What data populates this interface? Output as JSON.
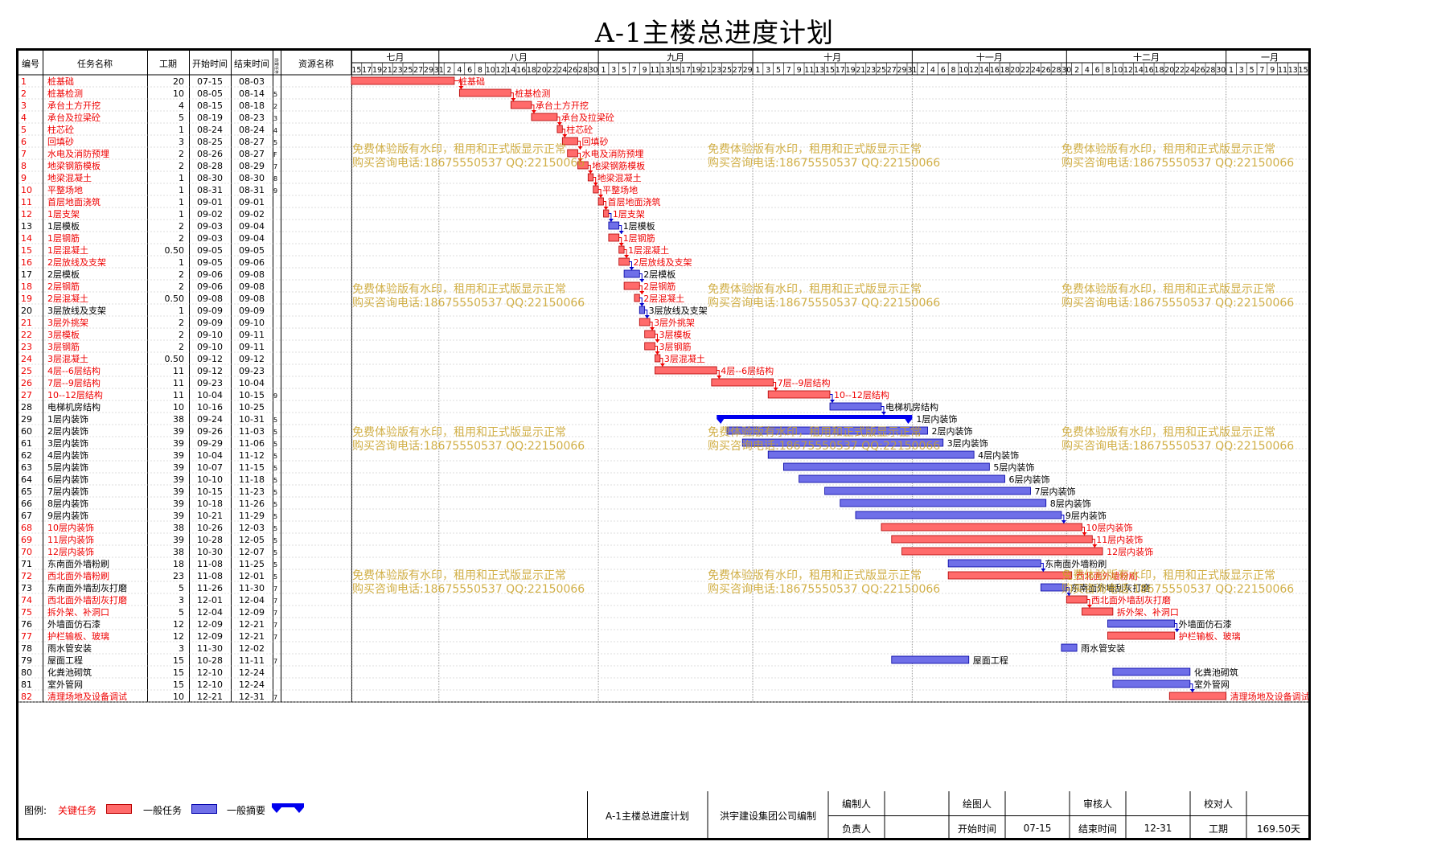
{
  "title": "A-1主楼总进度计划",
  "headers": {
    "id": "编号",
    "name": "任务名称",
    "dur": "工期",
    "start": "开始时间",
    "end": "结束时间",
    "pre": "前置任务",
    "res": "资源名称"
  },
  "months": [
    {
      "label": "七月",
      "start": "07-15",
      "end": "07-31"
    },
    {
      "label": "八月",
      "start": "08-01",
      "end": "08-31"
    },
    {
      "label": "九月",
      "start": "09-01",
      "end": "09-30"
    },
    {
      "label": "十月",
      "start": "10-01",
      "end": "10-31"
    },
    {
      "label": "十一月",
      "start": "11-01",
      "end": "11-30"
    },
    {
      "label": "十二月",
      "start": "12-01",
      "end": "12-31"
    },
    {
      "label": "一月",
      "start": "01-01",
      "end": "01-17"
    }
  ],
  "day_ticks": [
    {
      "month": 7,
      "days": [
        15,
        17,
        19,
        21,
        23,
        25,
        27,
        29,
        31
      ]
    },
    {
      "month": 8,
      "days": [
        2,
        4,
        6,
        8,
        10,
        12,
        14,
        16,
        18,
        20,
        22,
        24,
        26,
        28,
        30
      ]
    },
    {
      "month": 9,
      "days": [
        1,
        3,
        5,
        7,
        9,
        11,
        13,
        15,
        17,
        19,
        21,
        23,
        25,
        27,
        29
      ]
    },
    {
      "month": 10,
      "days": [
        1,
        3,
        5,
        7,
        9,
        11,
        13,
        15,
        17,
        19,
        21,
        23,
        25,
        27,
        29,
        31
      ]
    },
    {
      "month": 11,
      "days": [
        2,
        4,
        6,
        8,
        10,
        12,
        14,
        16,
        18,
        20,
        22,
        24,
        26,
        28,
        30
      ]
    },
    {
      "month": 12,
      "days": [
        2,
        4,
        6,
        8,
        10,
        12,
        14,
        16,
        18,
        20,
        22,
        24,
        26,
        28,
        30
      ]
    },
    {
      "month": 1,
      "days": [
        1,
        3,
        5,
        7,
        9,
        11,
        13,
        15,
        17
      ]
    }
  ],
  "chart_data": {
    "type": "gantt",
    "title": "A-1主楼总进度计划",
    "x_axis": "date (07-15 to 01-17)",
    "tasks": [
      {
        "id": "1",
        "name": "桩基础",
        "duration": "20",
        "start": "07-15",
        "end": "08-03",
        "pre": "",
        "kind": "critical"
      },
      {
        "id": "2",
        "name": "桩基检测",
        "duration": "10",
        "start": "08-05",
        "end": "08-14",
        "pre": "5",
        "kind": "critical"
      },
      {
        "id": "3",
        "name": "承台土方开挖",
        "duration": "4",
        "start": "08-15",
        "end": "08-18",
        "pre": "2",
        "kind": "critical"
      },
      {
        "id": "4",
        "name": "承台及拉梁砼",
        "duration": "5",
        "start": "08-19",
        "end": "08-23",
        "pre": "3",
        "kind": "critical"
      },
      {
        "id": "5",
        "name": "柱芯砼",
        "duration": "1",
        "start": "08-24",
        "end": "08-24",
        "pre": "4",
        "kind": "critical"
      },
      {
        "id": "6",
        "name": "回填砂",
        "duration": "3",
        "start": "08-25",
        "end": "08-27",
        "pre": "5",
        "kind": "critical"
      },
      {
        "id": "7",
        "name": "水电及消防预埋",
        "duration": "2",
        "start": "08-26",
        "end": "08-27",
        "pre": "F",
        "kind": "critical"
      },
      {
        "id": "8",
        "name": "地梁钢筋模板",
        "duration": "2",
        "start": "08-28",
        "end": "08-29",
        "pre": "7",
        "kind": "critical"
      },
      {
        "id": "9",
        "name": "地梁混凝土",
        "duration": "1",
        "start": "08-30",
        "end": "08-30",
        "pre": "8",
        "kind": "critical"
      },
      {
        "id": "10",
        "name": "平整场地",
        "duration": "1",
        "start": "08-31",
        "end": "08-31",
        "pre": "9",
        "kind": "critical"
      },
      {
        "id": "11",
        "name": "首层地面浇筑",
        "duration": "1",
        "start": "09-01",
        "end": "09-01",
        "pre": "",
        "kind": "critical"
      },
      {
        "id": "12",
        "name": "1层支架",
        "duration": "1",
        "start": "09-02",
        "end": "09-02",
        "pre": "",
        "kind": "critical"
      },
      {
        "id": "13",
        "name": "1层模板",
        "duration": "2",
        "start": "09-03",
        "end": "09-04",
        "pre": "",
        "kind": "normal"
      },
      {
        "id": "14",
        "name": "1层钢筋",
        "duration": "2",
        "start": "09-03",
        "end": "09-04",
        "pre": "",
        "kind": "critical"
      },
      {
        "id": "15",
        "name": "1层混凝土",
        "duration": "0.50",
        "start": "09-05",
        "end": "09-05",
        "pre": "",
        "kind": "critical"
      },
      {
        "id": "16",
        "name": "2层放线及支架",
        "duration": "1",
        "start": "09-05",
        "end": "09-06",
        "pre": "",
        "kind": "critical"
      },
      {
        "id": "17",
        "name": "2层模板",
        "duration": "2",
        "start": "09-06",
        "end": "09-08",
        "pre": "",
        "kind": "normal"
      },
      {
        "id": "18",
        "name": "2层钢筋",
        "duration": "2",
        "start": "09-06",
        "end": "09-08",
        "pre": "",
        "kind": "critical"
      },
      {
        "id": "19",
        "name": "2层混凝土",
        "duration": "0.50",
        "start": "09-08",
        "end": "09-08",
        "pre": "",
        "kind": "critical"
      },
      {
        "id": "20",
        "name": "3层放线及支架",
        "duration": "1",
        "start": "09-09",
        "end": "09-09",
        "pre": "",
        "kind": "normal"
      },
      {
        "id": "21",
        "name": "3层外挑架",
        "duration": "2",
        "start": "09-09",
        "end": "09-10",
        "pre": "",
        "kind": "critical"
      },
      {
        "id": "22",
        "name": "3层模板",
        "duration": "2",
        "start": "09-10",
        "end": "09-11",
        "pre": "",
        "kind": "critical"
      },
      {
        "id": "23",
        "name": "3层钢筋",
        "duration": "2",
        "start": "09-10",
        "end": "09-11",
        "pre": "",
        "kind": "critical"
      },
      {
        "id": "24",
        "name": "3层混凝土",
        "duration": "0.50",
        "start": "09-12",
        "end": "09-12",
        "pre": "",
        "kind": "critical"
      },
      {
        "id": "25",
        "name": "4层--6层结构",
        "duration": "11",
        "start": "09-12",
        "end": "09-23",
        "pre": "",
        "kind": "critical"
      },
      {
        "id": "26",
        "name": "7层--9层结构",
        "duration": "11",
        "start": "09-23",
        "end": "10-04",
        "pre": "",
        "kind": "critical"
      },
      {
        "id": "27",
        "name": "10--12层结构",
        "duration": "11",
        "start": "10-04",
        "end": "10-15",
        "pre": "9",
        "kind": "critical"
      },
      {
        "id": "28",
        "name": "电梯机房结构",
        "duration": "10",
        "start": "10-16",
        "end": "10-25",
        "pre": "",
        "kind": "normal"
      },
      {
        "id": "29",
        "name": "1层内装饰",
        "duration": "38",
        "start": "09-24",
        "end": "10-31",
        "pre": "5",
        "kind": "summary"
      },
      {
        "id": "60",
        "name": "2层内装饰",
        "duration": "39",
        "start": "09-26",
        "end": "11-03",
        "pre": "5",
        "kind": "normal"
      },
      {
        "id": "61",
        "name": "3层内装饰",
        "duration": "39",
        "start": "09-29",
        "end": "11-06",
        "pre": "5",
        "kind": "normal"
      },
      {
        "id": "62",
        "name": "4层内装饰",
        "duration": "39",
        "start": "10-04",
        "end": "11-12",
        "pre": "5",
        "kind": "normal"
      },
      {
        "id": "63",
        "name": "5层内装饰",
        "duration": "39",
        "start": "10-07",
        "end": "11-15",
        "pre": "5",
        "kind": "normal"
      },
      {
        "id": "64",
        "name": "6层内装饰",
        "duration": "39",
        "start": "10-10",
        "end": "11-18",
        "pre": "5",
        "kind": "normal"
      },
      {
        "id": "65",
        "name": "7层内装饰",
        "duration": "39",
        "start": "10-15",
        "end": "11-23",
        "pre": "5",
        "kind": "normal"
      },
      {
        "id": "66",
        "name": "8层内装饰",
        "duration": "39",
        "start": "10-18",
        "end": "11-26",
        "pre": "5",
        "kind": "normal"
      },
      {
        "id": "67",
        "name": "9层内装饰",
        "duration": "39",
        "start": "10-21",
        "end": "11-29",
        "pre": "5",
        "kind": "normal"
      },
      {
        "id": "68",
        "name": "10层内装饰",
        "duration": "38",
        "start": "10-26",
        "end": "12-03",
        "pre": "5",
        "kind": "critical"
      },
      {
        "id": "69",
        "name": "11层内装饰",
        "duration": "39",
        "start": "10-28",
        "end": "12-05",
        "pre": "5",
        "kind": "critical"
      },
      {
        "id": "70",
        "name": "12层内装饰",
        "duration": "38",
        "start": "10-30",
        "end": "12-07",
        "pre": "5",
        "kind": "critical"
      },
      {
        "id": "71",
        "name": "东南面外墙粉刷",
        "duration": "18",
        "start": "11-08",
        "end": "11-25",
        "pre": "5",
        "kind": "normal"
      },
      {
        "id": "72",
        "name": "西北面外墙粉刷",
        "duration": "23",
        "start": "11-08",
        "end": "12-01",
        "pre": "5",
        "kind": "critical"
      },
      {
        "id": "73",
        "name": "东南面外墙刮灰打磨",
        "duration": "5",
        "start": "11-26",
        "end": "11-30",
        "pre": "7",
        "kind": "normal"
      },
      {
        "id": "74",
        "name": "西北面外墙刮灰打磨",
        "duration": "3",
        "start": "12-01",
        "end": "12-04",
        "pre": "7",
        "kind": "critical"
      },
      {
        "id": "75",
        "name": "拆外架、补洞口",
        "duration": "5",
        "start": "12-04",
        "end": "12-09",
        "pre": "7",
        "kind": "critical"
      },
      {
        "id": "76",
        "name": "外墙面仿石漆",
        "duration": "12",
        "start": "12-09",
        "end": "12-21",
        "pre": "7",
        "kind": "normal"
      },
      {
        "id": "77",
        "name": "护栏输板、玻璃",
        "duration": "12",
        "start": "12-09",
        "end": "12-21",
        "pre": "7",
        "kind": "critical"
      },
      {
        "id": "78",
        "name": "雨水管安装",
        "duration": "3",
        "start": "11-30",
        "end": "12-02",
        "pre": "",
        "kind": "normal"
      },
      {
        "id": "79",
        "name": "屋面工程",
        "duration": "15",
        "start": "10-28",
        "end": "11-11",
        "pre": "7",
        "kind": "normal"
      },
      {
        "id": "80",
        "name": "化粪池砌筑",
        "duration": "15",
        "start": "12-10",
        "end": "12-24",
        "pre": "",
        "kind": "normal"
      },
      {
        "id": "81",
        "name": "室外管网",
        "duration": "15",
        "start": "12-10",
        "end": "12-24",
        "pre": "",
        "kind": "normal"
      },
      {
        "id": "82",
        "name": "清理场地及设备调试",
        "duration": "10",
        "start": "12-21",
        "end": "12-31",
        "pre": "7",
        "kind": "critical"
      }
    ],
    "colors": {
      "critical": "#ff6b6b",
      "normal": "#6f6fe8",
      "summary": "#0000ee",
      "critical_text": "#ee0000",
      "normal_text": "#000000",
      "link": "#0000cc",
      "critical_link": "#ee0000"
    }
  },
  "legend": {
    "label": "图例:",
    "critical": "关键任务",
    "normal": "一般任务",
    "summary": "一般摘要"
  },
  "footer": {
    "plan": "A-1主楼总进度计划",
    "company": "洪宇建设集团公司编制",
    "editor": "编制人",
    "drawer": "绘图人",
    "reviewer": "审核人",
    "checker": "校对人",
    "owner": "负责人",
    "start_label": "开始时间",
    "start_val": "07-15",
    "end_label": "结束时间",
    "end_val": "12-31",
    "dur_label": "工期",
    "dur_val": "169.50天"
  },
  "watermark": {
    "line1": "免费体验版有水印，租用和正式版显示正常",
    "line2": "购买咨询电话:18675550537 QQ:22150066"
  }
}
